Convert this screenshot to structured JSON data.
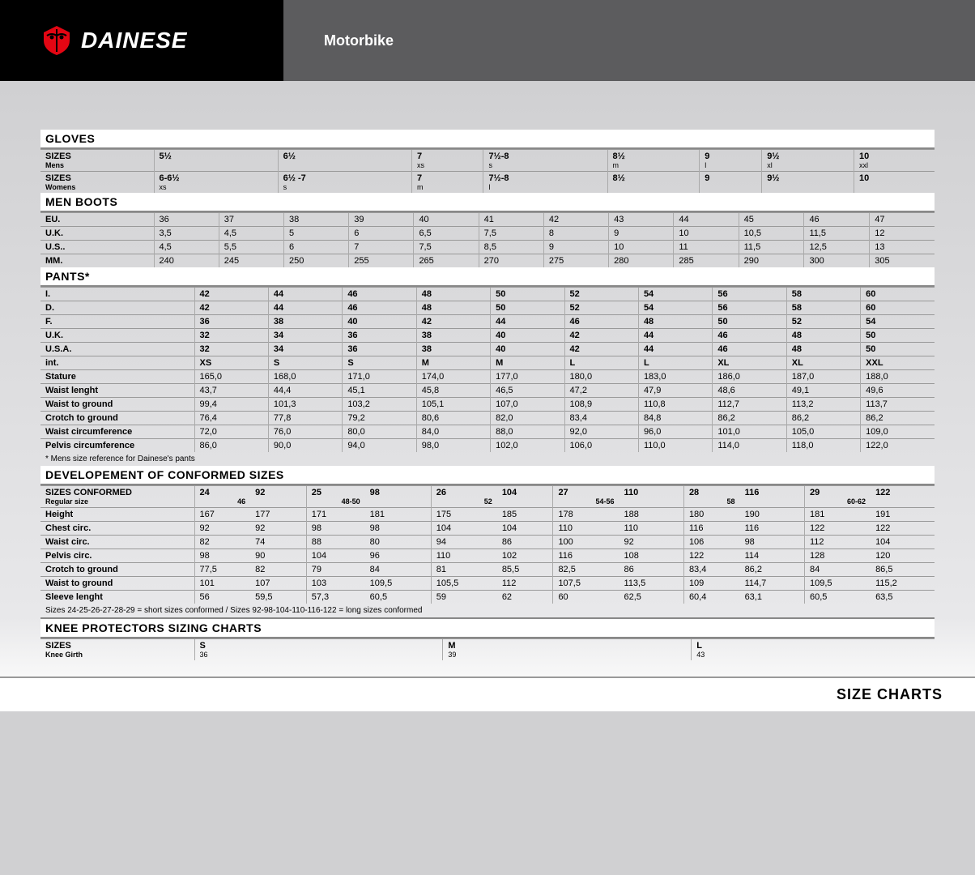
{
  "brand": "DAINESE",
  "category": "Motorbike",
  "footer": "SIZE CHARTS",
  "sections": {
    "gloves": {
      "title": "GLOVES",
      "rows": [
        {
          "label": "SIZES",
          "sublabel": "Mens",
          "cells": [
            "5½",
            "6½",
            "7",
            "7½-8",
            "8½",
            "9",
            "9½",
            "10"
          ],
          "subcells": [
            "",
            "",
            "xs",
            "s",
            "m",
            "l",
            "xl",
            "xxl"
          ]
        },
        {
          "label": "SIZES",
          "sublabel": "Womens",
          "cells": [
            "6-6½",
            "6½ -7",
            "7",
            "7½-8",
            "8½",
            "9",
            "9½",
            "10"
          ],
          "subcells": [
            "xs",
            "s",
            "m",
            "l",
            "",
            "",
            "",
            ""
          ]
        }
      ]
    },
    "menboots": {
      "title": "MEN BOOTS",
      "rows": [
        {
          "label": "EU.",
          "cells": [
            "36",
            "37",
            "38",
            "39",
            "40",
            "41",
            "42",
            "43",
            "44",
            "45",
            "46",
            "47"
          ]
        },
        {
          "label": "U.K.",
          "cells": [
            "3,5",
            "4,5",
            "5",
            "6",
            "6,5",
            "7,5",
            "8",
            "9",
            "10",
            "10,5",
            "11,5",
            "12"
          ]
        },
        {
          "label": "U.S..",
          "cells": [
            "4,5",
            "5,5",
            "6",
            "7",
            "7,5",
            "8,5",
            "9",
            "10",
            "11",
            "11,5",
            "12,5",
            "13"
          ]
        },
        {
          "label": "MM.",
          "cells": [
            "240",
            "245",
            "250",
            "255",
            "265",
            "270",
            "275",
            "280",
            "285",
            "290",
            "300",
            "305"
          ]
        }
      ]
    },
    "pants": {
      "title": "PANTS*",
      "rows": [
        {
          "label": "I.",
          "cells": [
            "42",
            "44",
            "46",
            "48",
            "50",
            "52",
            "54",
            "56",
            "58",
            "60"
          ],
          "bold": true
        },
        {
          "label": "D.",
          "cells": [
            "42",
            "44",
            "46",
            "48",
            "50",
            "52",
            "54",
            "56",
            "58",
            "60"
          ],
          "bold": true
        },
        {
          "label": "F.",
          "cells": [
            "36",
            "38",
            "40",
            "42",
            "44",
            "46",
            "48",
            "50",
            "52",
            "54"
          ],
          "bold": true
        },
        {
          "label": "U.K.",
          "cells": [
            "32",
            "34",
            "36",
            "38",
            "40",
            "42",
            "44",
            "46",
            "48",
            "50"
          ],
          "bold": true
        },
        {
          "label": "U.S.A.",
          "cells": [
            "32",
            "34",
            "36",
            "38",
            "40",
            "42",
            "44",
            "46",
            "48",
            "50"
          ],
          "bold": true
        },
        {
          "label": "int.",
          "cells": [
            "XS",
            "S",
            "S",
            "M",
            "M",
            "L",
            "L",
            "XL",
            "XL",
            "XXL"
          ],
          "bold": true
        },
        {
          "label": "Stature",
          "cells": [
            "165,0",
            "168,0",
            "171,0",
            "174,0",
            "177,0",
            "180,0",
            "183,0",
            "186,0",
            "187,0",
            "188,0"
          ]
        },
        {
          "label": "Waist lenght",
          "cells": [
            "43,7",
            "44,4",
            "45,1",
            "45,8",
            "46,5",
            "47,2",
            "47,9",
            "48,6",
            "49,1",
            "49,6"
          ]
        },
        {
          "label": "Waist to ground",
          "cells": [
            "99,4",
            "101,3",
            "103,2",
            "105,1",
            "107,0",
            "108,9",
            "110,8",
            "112,7",
            "113,2",
            "113,7"
          ]
        },
        {
          "label": "Crotch to ground",
          "cells": [
            "76,4",
            "77,8",
            "79,2",
            "80,6",
            "82,0",
            "83,4",
            "84,8",
            "86,2",
            "86,2",
            "86,2"
          ]
        },
        {
          "label": "Waist circumference",
          "cells": [
            "72,0",
            "76,0",
            "80,0",
            "84,0",
            "88,0",
            "92,0",
            "96,0",
            "101,0",
            "105,0",
            "109,0"
          ]
        },
        {
          "label": "Pelvis circumference",
          "cells": [
            "86,0",
            "90,0",
            "94,0",
            "98,0",
            "102,0",
            "106,0",
            "110,0",
            "114,0",
            "118,0",
            "122,0"
          ]
        }
      ],
      "note": "* Mens size reference for Dainese's pants"
    },
    "conformed": {
      "title": "DEVELOPEMENT OF CONFORMED SIZES",
      "header": {
        "label": "SIZES CONFORMED",
        "sublabel": "Regular size",
        "cells": [
          "24",
          "92",
          "25",
          "98",
          "26",
          "104",
          "27",
          "110",
          "28",
          "116",
          "29",
          "122"
        ],
        "subcells": [
          "46",
          "",
          "48-50",
          "",
          "52",
          "",
          "54-56",
          "",
          "58",
          "",
          "60-62",
          ""
        ]
      },
      "rows": [
        {
          "label": "Height",
          "cells": [
            "167",
            "177",
            "171",
            "181",
            "175",
            "185",
            "178",
            "188",
            "180",
            "190",
            "181",
            "191"
          ]
        },
        {
          "label": "Chest circ.",
          "cells": [
            "92",
            "92",
            "98",
            "98",
            "104",
            "104",
            "110",
            "110",
            "116",
            "116",
            "122",
            "122"
          ]
        },
        {
          "label": "Waist circ.",
          "cells": [
            "82",
            "74",
            "88",
            "80",
            "94",
            "86",
            "100",
            "92",
            "106",
            "98",
            "112",
            "104"
          ]
        },
        {
          "label": "Pelvis circ.",
          "cells": [
            "98",
            "90",
            "104",
            "96",
            "110",
            "102",
            "116",
            "108",
            "122",
            "114",
            "128",
            "120"
          ]
        },
        {
          "label": "Crotch to ground",
          "cells": [
            "77,5",
            "82",
            "79",
            "84",
            "81",
            "85,5",
            "82,5",
            "86",
            "83,4",
            "86,2",
            "84",
            "86,5"
          ]
        },
        {
          "label": "Waist to ground",
          "cells": [
            "101",
            "107",
            "103",
            "109,5",
            "105,5",
            "112",
            "107,5",
            "113,5",
            "109",
            "114,7",
            "109,5",
            "115,2"
          ]
        },
        {
          "label": "Sleeve lenght",
          "cells": [
            "56",
            "59,5",
            "57,3",
            "60,5",
            "59",
            "62",
            "60",
            "62,5",
            "60,4",
            "63,1",
            "60,5",
            "63,5"
          ]
        }
      ],
      "note": "Sizes 24-25-26-27-28-29 = short sizes conformed / Sizes 92-98-104-110-116-122 = long sizes conformed"
    },
    "knee": {
      "title": "KNEE PROTECTORS SIZING CHARTS",
      "rows": [
        {
          "label": "SIZES",
          "sublabel": "Knee Girth",
          "cells": [
            "S",
            "M",
            "L"
          ],
          "subcells": [
            "36",
            "39",
            "43"
          ]
        }
      ]
    }
  }
}
